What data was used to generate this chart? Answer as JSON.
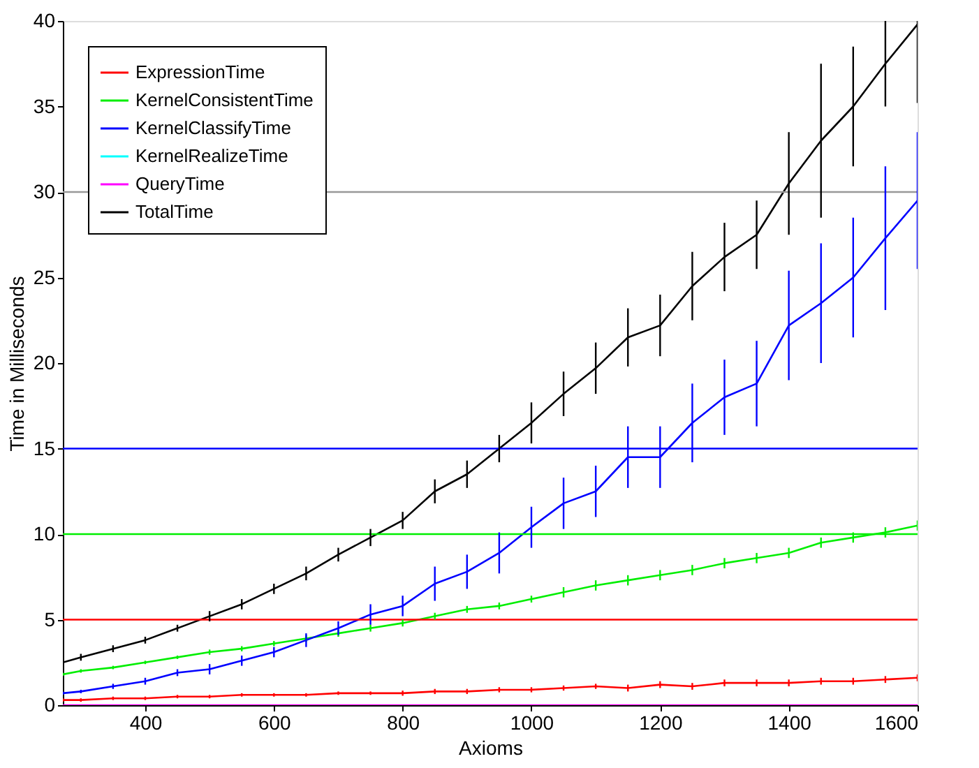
{
  "chart_data": {
    "type": "line",
    "xlabel": "Axioms",
    "ylabel": "Time in Milliseconds",
    "x": [
      272,
      300,
      350,
      400,
      450,
      500,
      550,
      600,
      650,
      700,
      750,
      800,
      850,
      900,
      950,
      1000,
      1050,
      1100,
      1150,
      1200,
      1250,
      1300,
      1350,
      1400,
      1450,
      1500,
      1550,
      1600
    ],
    "series": [
      {
        "name": "ExpressionTime",
        "color": "#ff0000",
        "values": [
          0.3,
          0.3,
          0.4,
          0.4,
          0.5,
          0.5,
          0.6,
          0.6,
          0.6,
          0.7,
          0.7,
          0.7,
          0.8,
          0.8,
          0.9,
          0.9,
          1.0,
          1.1,
          1.0,
          1.2,
          1.1,
          1.3,
          1.3,
          1.3,
          1.4,
          1.4,
          1.5,
          1.6
        ],
        "errors": [
          0.1,
          0.1,
          0.1,
          0.1,
          0.1,
          0.1,
          0.1,
          0.1,
          0.1,
          0.1,
          0.1,
          0.15,
          0.15,
          0.15,
          0.15,
          0.15,
          0.15,
          0.15,
          0.2,
          0.2,
          0.2,
          0.2,
          0.2,
          0.2,
          0.2,
          0.2,
          0.2,
          0.2
        ]
      },
      {
        "name": "KernelConsistentTime",
        "color": "#00ee00",
        "values": [
          1.8,
          2.0,
          2.2,
          2.5,
          2.8,
          3.1,
          3.3,
          3.6,
          3.9,
          4.2,
          4.5,
          4.8,
          5.2,
          5.6,
          5.8,
          6.2,
          6.6,
          7.0,
          7.3,
          7.6,
          7.9,
          8.3,
          8.6,
          8.9,
          9.5,
          9.8,
          10.1,
          10.5
        ],
        "errors": [
          0.1,
          0.1,
          0.1,
          0.1,
          0.1,
          0.15,
          0.15,
          0.15,
          0.2,
          0.2,
          0.2,
          0.2,
          0.2,
          0.2,
          0.2,
          0.2,
          0.3,
          0.3,
          0.3,
          0.3,
          0.3,
          0.3,
          0.3,
          0.3,
          0.3,
          0.3,
          0.3,
          0.3
        ]
      },
      {
        "name": "KernelClassifyTime",
        "color": "#0000ff",
        "values": [
          0.7,
          0.8,
          1.1,
          1.4,
          1.9,
          2.1,
          2.6,
          3.1,
          3.8,
          4.5,
          5.3,
          5.8,
          7.1,
          7.8,
          8.9,
          10.4,
          11.8,
          12.5,
          14.5,
          14.5,
          16.5,
          18.0,
          18.8,
          22.2,
          23.5,
          25.0,
          27.3,
          29.5
        ],
        "errors": [
          0.1,
          0.1,
          0.15,
          0.2,
          0.2,
          0.3,
          0.3,
          0.3,
          0.4,
          0.4,
          0.6,
          0.6,
          1.0,
          1.0,
          1.2,
          1.2,
          1.5,
          1.5,
          1.8,
          1.8,
          2.3,
          2.2,
          2.5,
          3.2,
          3.5,
          3.5,
          4.2,
          4.0
        ]
      },
      {
        "name": "KernelRealizeTime",
        "color": "#00ffff",
        "values": [
          null,
          null,
          null,
          null,
          null,
          null,
          null,
          null,
          null,
          null,
          null,
          null,
          null,
          null,
          null,
          null,
          null,
          null,
          null,
          null,
          null,
          null,
          null,
          null,
          null,
          null,
          null,
          null
        ]
      },
      {
        "name": "QueryTime",
        "color": "#ff00ff",
        "values": [
          0,
          0,
          0,
          0,
          0,
          0,
          0,
          0,
          0,
          0,
          0,
          0,
          0,
          0,
          0,
          0,
          0,
          0,
          0,
          0,
          0,
          0,
          0,
          0,
          0,
          0,
          0,
          0
        ]
      },
      {
        "name": "TotalTime",
        "color": "#000000",
        "values": [
          2.5,
          2.8,
          3.3,
          3.8,
          4.5,
          5.2,
          5.9,
          6.8,
          7.7,
          8.8,
          9.8,
          10.8,
          12.5,
          13.5,
          15.0,
          16.5,
          18.2,
          19.7,
          21.5,
          22.2,
          24.5,
          26.2,
          27.5,
          30.5,
          33.0,
          35.0,
          37.5,
          39.8
        ],
        "errors": [
          0.2,
          0.2,
          0.2,
          0.2,
          0.2,
          0.3,
          0.3,
          0.3,
          0.4,
          0.4,
          0.5,
          0.5,
          0.7,
          0.8,
          0.8,
          1.2,
          1.3,
          1.5,
          1.7,
          1.8,
          2.0,
          2.0,
          2.0,
          3.0,
          4.5,
          3.5,
          2.5,
          [
            35.2,
            40
          ]
        ]
      }
    ],
    "ref_lines": [
      {
        "axis": "y",
        "value": 5,
        "color": "#ff0000"
      },
      {
        "axis": "y",
        "value": 10,
        "color": "#00ee00"
      },
      {
        "axis": "y",
        "value": 15,
        "color": "#0000ff"
      },
      {
        "axis": "y",
        "value": 30,
        "color": "#999999"
      }
    ],
    "xlim": [
      272,
      1600
    ],
    "xticks": [
      400,
      600,
      800,
      1000,
      1200,
      1400,
      1600
    ],
    "ylim": [
      0,
      40
    ],
    "yticks": [
      0,
      5,
      10,
      15,
      20,
      25,
      30,
      35,
      40
    ],
    "grid": false,
    "legend": "top left",
    "marker": "none",
    "line_style": "solid"
  }
}
